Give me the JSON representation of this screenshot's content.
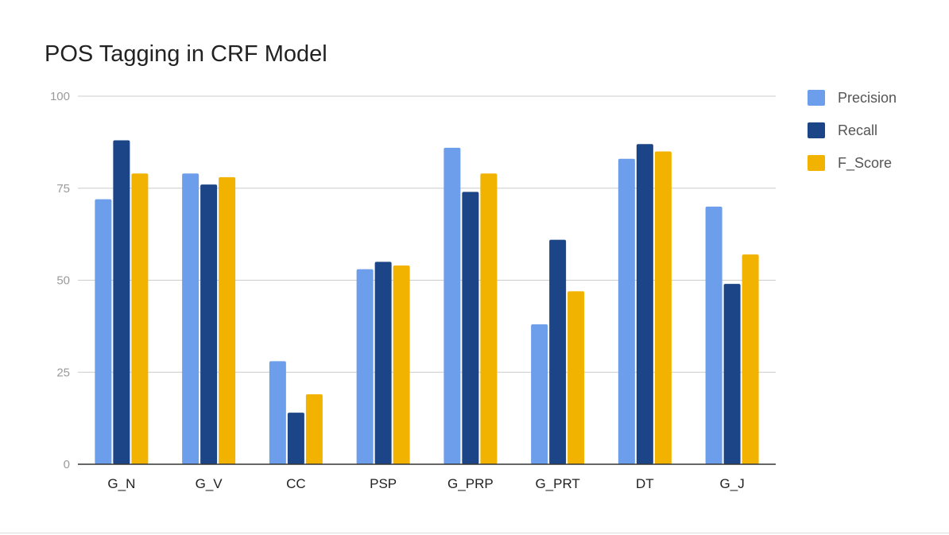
{
  "chart_data": {
    "type": "bar",
    "title": "POS Tagging in CRF Model",
    "categories": [
      "G_N",
      "G_V",
      "CC",
      "PSP",
      "G_PRP",
      "G_PRT",
      "DT",
      "G_J"
    ],
    "series": [
      {
        "name": "Precision",
        "color": "#6d9eeb",
        "values": [
          72,
          79,
          28,
          53,
          86,
          38,
          83,
          70
        ]
      },
      {
        "name": "Recall",
        "color": "#1c4587",
        "values": [
          88,
          76,
          14,
          55,
          74,
          61,
          87,
          49
        ]
      },
      {
        "name": "F_Score",
        "color": "#f1b300",
        "values": [
          79,
          78,
          19,
          54,
          79,
          47,
          85,
          57
        ]
      }
    ],
    "ylim": [
      0,
      100
    ],
    "yticks": [
      0,
      25,
      50,
      75,
      100
    ],
    "xlabel": "",
    "ylabel": "",
    "grid": true,
    "legend": "right"
  }
}
